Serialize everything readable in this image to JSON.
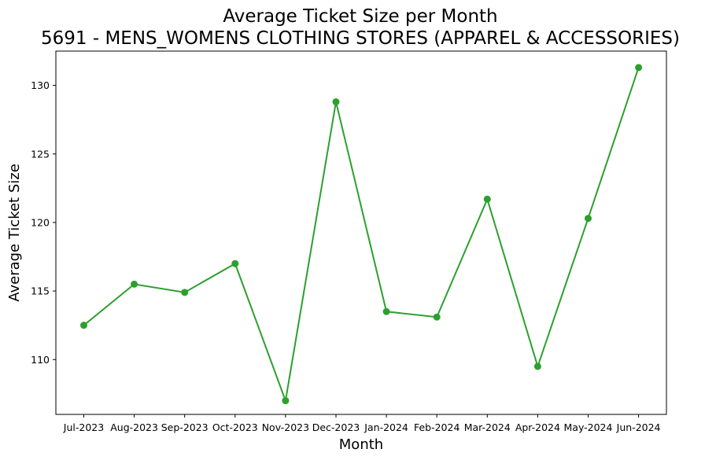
{
  "chart_data": {
    "type": "line",
    "title": "Average Ticket Size per Month",
    "subtitle": "5691 - MENS_WOMENS CLOTHING STORES (APPAREL & ACCESSORIES)",
    "xlabel": "Month",
    "ylabel": "Average Ticket Size",
    "categories": [
      "Jul-2023",
      "Aug-2023",
      "Sep-2023",
      "Oct-2023",
      "Nov-2023",
      "Dec-2023",
      "Jan-2024",
      "Feb-2024",
      "Mar-2024",
      "Apr-2024",
      "May-2024",
      "Jun-2024"
    ],
    "series": [
      {
        "values": [
          112.5,
          115.5,
          114.9,
          117.0,
          107.0,
          128.8,
          113.5,
          113.1,
          121.7,
          109.5,
          120.3,
          131.3
        ]
      }
    ],
    "ylim": [
      106.0,
      132.5
    ],
    "yticks": [
      110,
      115,
      120,
      125,
      130
    ],
    "grid": false,
    "color": "#2ca02c"
  }
}
